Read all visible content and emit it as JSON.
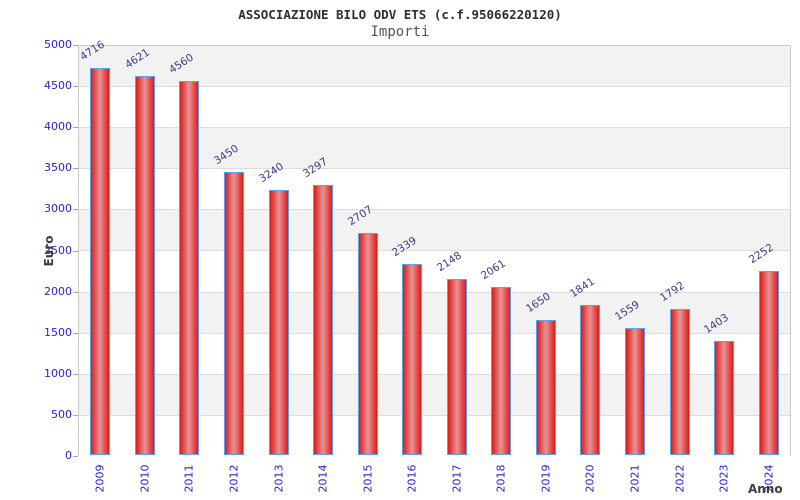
{
  "header": {
    "title": "ASSOCIAZIONE BILO ODV ETS (c.f.95066220120)",
    "subtitle": "Importi"
  },
  "chart_data": {
    "type": "bar",
    "title": "ASSOCIAZIONE BILO ODV ETS (c.f.95066220120)",
    "subtitle": "Importi",
    "xlabel": "Anno",
    "ylabel": "Euro",
    "categories": [
      "2009",
      "2010",
      "2011",
      "2012",
      "2013",
      "2014",
      "2015",
      "2016",
      "2017",
      "2018",
      "2019",
      "2020",
      "2021",
      "2022",
      "2023",
      "2024"
    ],
    "values": [
      4716,
      4621,
      4560,
      3450,
      3240,
      3297,
      2707,
      2339,
      2148,
      2061,
      1650,
      1841,
      1559,
      1792,
      1403,
      2252
    ],
    "ylim": [
      0,
      5000
    ],
    "ytick_step": 500,
    "ytick_labels": [
      "0",
      "500",
      "1000",
      "1500",
      "2000",
      "2500",
      "3000",
      "3500",
      "4000",
      "4500",
      "5000"
    ],
    "grid": "horizontal-bands-alternating",
    "legend": false,
    "value_labels_shown": true,
    "value_label_rotation_deg": -33,
    "xtick_label_rotation_deg": -90,
    "colors": {
      "bar_edge_red": "#dd1b1b",
      "bar_center_red": "#e89494",
      "bar_border_blue": "#58a2ee",
      "axis_tick_label_blue": "#2525cd",
      "value_label_navy": "#3a3a8c",
      "band_gray": "#f2f2f2",
      "band_white": "#ffffff",
      "gridline": "#dcdcdc",
      "plot_border": "#cccccc",
      "title_color": "#2e2e2e",
      "subtitle_color": "#555555",
      "axis_title_color": "#3d3d3d"
    }
  }
}
